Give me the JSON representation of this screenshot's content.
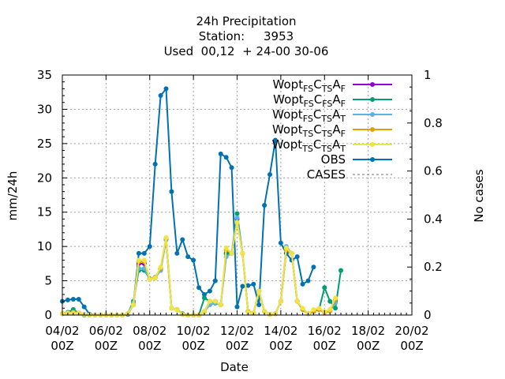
{
  "chart_data": {
    "type": "line",
    "title_lines": [
      "24h Precipitation",
      "Station:     3953",
      "Used  00,12  + 24-00 30-06"
    ],
    "xlabel": "Date",
    "ylabel": "mm/24h",
    "y2label": "No cases",
    "ylim": [
      0,
      35
    ],
    "y2lim": [
      0,
      1
    ],
    "xlim_days": [
      0,
      16
    ],
    "xtick_labels": [
      [
        "04/02",
        "00Z"
      ],
      [
        "06/02",
        "00Z"
      ],
      [
        "08/02",
        "00Z"
      ],
      [
        "10/02",
        "00Z"
      ],
      [
        "12/02",
        "00Z"
      ],
      [
        "14/02",
        "00Z"
      ],
      [
        "16/02",
        "00Z"
      ],
      [
        "18/02",
        "00Z"
      ],
      [
        "20/02",
        "00Z"
      ]
    ],
    "ytick_labels": [
      "0",
      "5",
      "10",
      "15",
      "20",
      "25",
      "30",
      "35"
    ],
    "y2tick_labels": [
      "0",
      "0.2",
      "0.4",
      "0.6",
      "0.8",
      "1"
    ],
    "grid": true,
    "legend_position": "top-right",
    "x_days": [
      0,
      0.25,
      0.5,
      0.75,
      1,
      1.25,
      1.5,
      1.75,
      2,
      2.25,
      2.5,
      2.75,
      3,
      3.25,
      3.5,
      3.75,
      4,
      4.25,
      4.5,
      4.75,
      5,
      5.25,
      5.5,
      5.75,
      6,
      6.25,
      6.5,
      6.75,
      7,
      7.25,
      7.5,
      7.75,
      8,
      8.25,
      8.5,
      8.75,
      9,
      9.25,
      9.5,
      9.75,
      10,
      10.25,
      10.5,
      10.75,
      11,
      11.25,
      11.5,
      11.75,
      12,
      12.25,
      12.5,
      12.75,
      13,
      13.25,
      13.5,
      13.75,
      14,
      14.25,
      14.5,
      14.75
    ],
    "series": [
      {
        "key": "wfs_ctsaf",
        "legend_parts": [
          [
            "Wopt",
            ""
          ],
          [
            "FS",
            "sub"
          ],
          [
            "C",
            ""
          ],
          [
            "TS",
            "sub"
          ],
          [
            "A",
            ""
          ],
          [
            "F",
            "sub"
          ]
        ],
        "color": "#9400d3",
        "values": [
          0.2,
          0.3,
          0.4,
          0.3,
          0.1,
          0,
          0,
          0,
          0,
          0,
          0,
          0,
          0.2,
          1.5,
          7.5,
          7.5,
          5.2,
          5.5,
          6.8,
          11.2,
          1,
          0.8,
          0.1,
          0,
          0,
          0,
          0.5,
          2,
          2,
          1.5,
          9,
          9,
          14,
          9,
          0.5,
          0.3,
          3.5,
          0.5,
          0.1,
          0.2,
          2,
          9.5,
          9,
          2,
          0.8,
          0.2,
          0.5,
          0.8,
          0.4,
          0.6,
          2
        ]
      },
      {
        "key": "wfs_cfsaf",
        "legend_parts": [
          [
            "Wopt",
            ""
          ],
          [
            "FS",
            "sub"
          ],
          [
            "C",
            ""
          ],
          [
            "FS",
            "sub"
          ],
          [
            "A",
            ""
          ],
          [
            "F",
            "sub"
          ]
        ],
        "color": "#009e73",
        "values": [
          0.2,
          0.4,
          0.8,
          0.3,
          0,
          0,
          0,
          0,
          0,
          0,
          0,
          0,
          0.2,
          2,
          6.5,
          6.5,
          5.3,
          5.4,
          6.6,
          11,
          1,
          0.8,
          0.2,
          0,
          0,
          0,
          2.5,
          2,
          1.8,
          1.5,
          9,
          9,
          14.8,
          9,
          0.5,
          0.3,
          3.5,
          0.5,
          0.1,
          0.2,
          2,
          9.5,
          9,
          2,
          0.8,
          0.2,
          0.5,
          0.8,
          4,
          2,
          1,
          6.5
        ]
      },
      {
        "key": "wfs_ctsat",
        "legend_parts": [
          [
            "Wopt",
            ""
          ],
          [
            "FS",
            "sub"
          ],
          [
            "C",
            ""
          ],
          [
            "TS",
            "sub"
          ],
          [
            "A",
            ""
          ],
          [
            "T",
            "sub"
          ]
        ],
        "color": "#56b4e9",
        "values": [
          0.2,
          0.3,
          0.4,
          0.3,
          0,
          0,
          0,
          0,
          0,
          0,
          0,
          0,
          0.2,
          1.8,
          6.8,
          6.8,
          5.2,
          5.4,
          6.5,
          11,
          1,
          0.8,
          0.1,
          0,
          0,
          0,
          0.5,
          1.5,
          1.7,
          1.5,
          8.5,
          9,
          14.2,
          9,
          0.5,
          0.3,
          3.5,
          0.5,
          0.1,
          0.2,
          2,
          10,
          9,
          2,
          0.8,
          0.2,
          0.5,
          0.8,
          0.4,
          0.6,
          1.8
        ]
      },
      {
        "key": "wts_ctsaf",
        "legend_parts": [
          [
            "Wopt",
            ""
          ],
          [
            "TS",
            "sub"
          ],
          [
            "C",
            ""
          ],
          [
            "TS",
            "sub"
          ],
          [
            "A",
            ""
          ],
          [
            "F",
            "sub"
          ]
        ],
        "color": "#e69f00",
        "values": [
          0.2,
          0.3,
          0.4,
          0.3,
          0.1,
          0,
          0,
          0,
          0,
          0,
          0,
          0,
          0.2,
          1.5,
          7.8,
          7.8,
          5.2,
          5.5,
          6.8,
          11.2,
          1,
          0.8,
          0.1,
          0,
          0,
          0,
          0.5,
          2,
          2,
          1.5,
          9.5,
          9,
          13.5,
          9,
          0.5,
          0.3,
          3.5,
          0.5,
          0.1,
          0.2,
          2,
          9.5,
          9,
          2,
          0.8,
          0.2,
          0.5,
          0.8,
          0.4,
          0.6,
          2.3
        ]
      },
      {
        "key": "wts_ctsat",
        "legend_parts": [
          [
            "Wopt",
            ""
          ],
          [
            "TS",
            "sub"
          ],
          [
            "C",
            ""
          ],
          [
            "TS",
            "sub"
          ],
          [
            "A",
            ""
          ],
          [
            "T",
            "sub"
          ]
        ],
        "color": "#f0e442",
        "values": [
          0.2,
          0.3,
          0.3,
          0.3,
          0.1,
          0,
          0,
          0,
          0,
          0,
          0,
          0,
          0.2,
          1.5,
          8,
          8,
          5.2,
          5.4,
          7,
          11.3,
          1,
          0.8,
          0.1,
          0,
          0,
          0,
          0.5,
          2,
          2,
          1.5,
          9.8,
          9,
          13.5,
          9,
          0.4,
          0.3,
          3.5,
          0.5,
          0.1,
          0.2,
          2,
          9.8,
          9,
          2,
          1,
          0.2,
          0.8,
          1,
          0.5,
          0.8,
          2.5
        ]
      },
      {
        "key": "obs",
        "legend_parts": [
          [
            "OBS",
            ""
          ]
        ],
        "color": "#0072b2",
        "values": [
          2,
          2.2,
          2.3,
          2.3,
          1.2,
          0.1,
          0,
          0,
          0,
          0,
          0,
          0,
          0.1,
          1.5,
          9,
          9,
          10,
          22,
          32,
          33,
          18,
          9,
          11,
          8.5,
          8,
          4,
          3,
          3.5,
          5,
          23.5,
          23,
          21.5,
          1.2,
          4.2,
          4.3,
          4.5,
          1.5,
          16,
          20.5,
          25.5,
          10.5,
          9,
          8,
          8.5,
          4.5,
          5,
          7
        ]
      }
    ],
    "cases": {
      "legend_parts": [
        [
          "CASES",
          ""
        ]
      ],
      "color": "#a0a0a0",
      "values": []
    }
  }
}
